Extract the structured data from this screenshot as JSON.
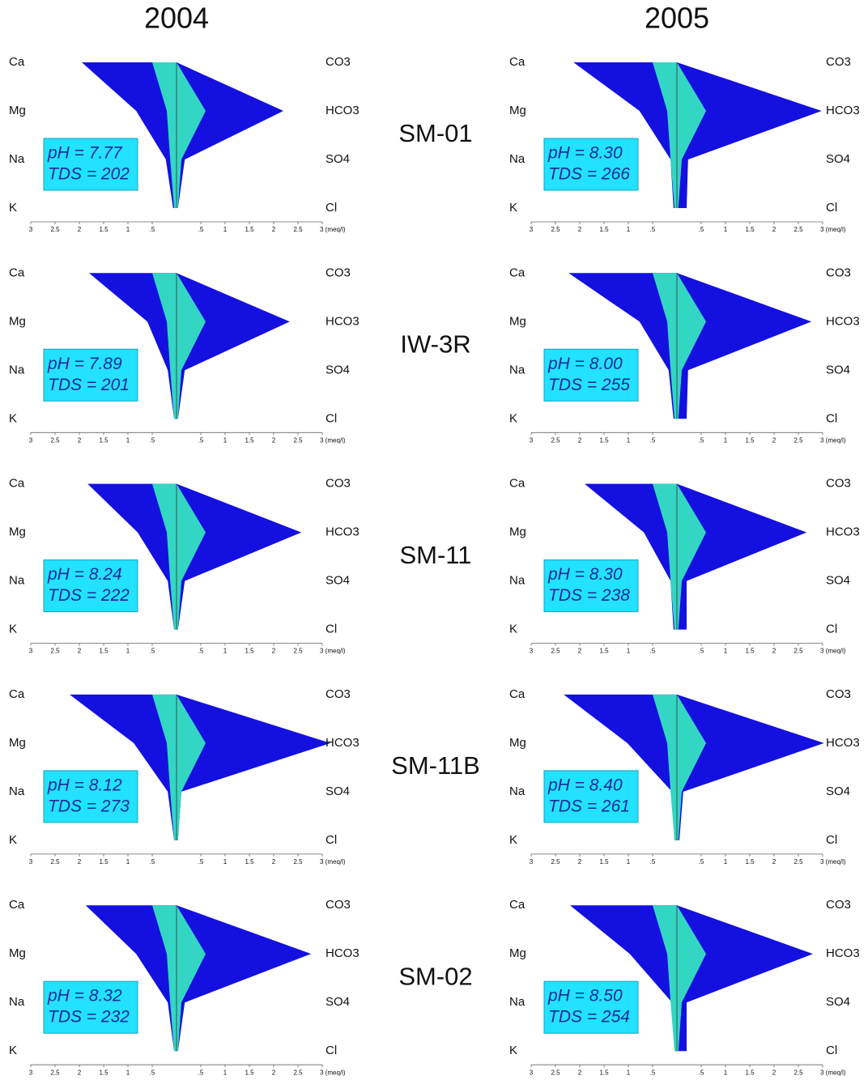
{
  "columns": [
    "2004",
    "2005"
  ],
  "sites": [
    "SM-01",
    "IW-3R",
    "SM-11",
    "SM-11B",
    "SM-02"
  ],
  "chart_data": [
    {
      "type": "stiff",
      "cation_labels": [
        "Ca",
        "Mg",
        "Na",
        "K"
      ],
      "anion_labels": [
        "CO3",
        "HCO3",
        "SO4",
        "Cl"
      ],
      "annotations": [
        "pH = 7.77",
        "TDS = 202"
      ],
      "xlim": [
        -3,
        3
      ],
      "xticks": [
        {
          "value": -3,
          "label": "3"
        },
        {
          "value": -2.5,
          "label": "2.5"
        },
        {
          "value": -2,
          "label": "2"
        },
        {
          "value": -1.5,
          "label": "1.5"
        },
        {
          "value": -1,
          "label": "1"
        },
        {
          "value": -0.5,
          "label": ".5"
        },
        {
          "value": 0.5,
          "label": ".5"
        },
        1,
        1.5,
        2,
        2.5,
        {
          "value": 3,
          "label": "3 (meq/l)"
        }
      ],
      "series": [
        {
          "color": "#1410e0",
          "cations": [
            1.95,
            0.83,
            0.22,
            0.07
          ],
          "anions": [
            0,
            2.2,
            0.17,
            0.03
          ]
        },
        {
          "color": "#33d6c2",
          "cations": [
            0.5,
            0.2,
            0.13,
            0.05
          ],
          "anions": [
            0,
            0.6,
            0.1,
            0.03
          ]
        }
      ]
    },
    {
      "type": "stiff",
      "cation_labels": [
        "Ca",
        "Mg",
        "Na",
        "K"
      ],
      "anion_labels": [
        "CO3",
        "HCO3",
        "SO4",
        "Cl"
      ],
      "annotations": [
        "pH = 8.30",
        "TDS = 266"
      ],
      "xlim": [
        -3,
        3
      ],
      "xticks": [
        {
          "value": -3,
          "label": "3"
        },
        {
          "value": -2.5,
          "label": "2.5"
        },
        {
          "value": -2,
          "label": "2"
        },
        {
          "value": -1.5,
          "label": "1.5"
        },
        {
          "value": -1,
          "label": "1"
        },
        {
          "value": -0.5,
          "label": ".5"
        },
        {
          "value": 0.5,
          "label": ".5"
        },
        1,
        1.5,
        2,
        2.5,
        {
          "value": 3,
          "label": "3 (meq/l)"
        }
      ],
      "series": [
        {
          "color": "#1410e0",
          "cations": [
            2.13,
            0.77,
            0.13,
            0.07
          ],
          "anions": [
            0,
            2.98,
            0.23,
            0.2
          ]
        },
        {
          "color": "#33d6c2",
          "cations": [
            0.5,
            0.2,
            0.13,
            0.05
          ],
          "anions": [
            0,
            0.6,
            0.1,
            0.03
          ]
        }
      ]
    },
    {
      "type": "stiff",
      "cation_labels": [
        "Ca",
        "Mg",
        "Na",
        "K"
      ],
      "anion_labels": [
        "CO3",
        "HCO3",
        "SO4",
        "Cl"
      ],
      "annotations": [
        "pH = 7.89",
        "TDS = 201"
      ],
      "xlim": [
        -3,
        3
      ],
      "xticks": [
        {
          "value": -3,
          "label": "3"
        },
        {
          "value": -2.5,
          "label": "2.5"
        },
        {
          "value": -2,
          "label": "2"
        },
        {
          "value": -1.5,
          "label": "1.5"
        },
        {
          "value": -1,
          "label": "1"
        },
        {
          "value": -0.5,
          "label": ".5"
        },
        {
          "value": 0.5,
          "label": ".5"
        },
        1,
        1.5,
        2,
        2.5,
        {
          "value": 3,
          "label": "3 (meq/l)"
        }
      ],
      "series": [
        {
          "color": "#1410e0",
          "cations": [
            1.8,
            0.6,
            0.18,
            0.05
          ],
          "anions": [
            0,
            2.33,
            0.17,
            0.03
          ]
        },
        {
          "color": "#33d6c2",
          "cations": [
            0.5,
            0.2,
            0.13,
            0.05
          ],
          "anions": [
            0,
            0.6,
            0.1,
            0.03
          ]
        }
      ]
    },
    {
      "type": "stiff",
      "cation_labels": [
        "Ca",
        "Mg",
        "Na",
        "K"
      ],
      "anion_labels": [
        "CO3",
        "HCO3",
        "SO4",
        "Cl"
      ],
      "annotations": [
        "pH = 8.00",
        "TDS = 255"
      ],
      "xlim": [
        -3,
        3
      ],
      "xticks": [
        {
          "value": -3,
          "label": "3"
        },
        {
          "value": -2.5,
          "label": "2.5"
        },
        {
          "value": -2,
          "label": "2"
        },
        {
          "value": -1.5,
          "label": "1.5"
        },
        {
          "value": -1,
          "label": "1"
        },
        {
          "value": -0.5,
          "label": ".5"
        },
        {
          "value": 0.5,
          "label": ".5"
        },
        1,
        1.5,
        2,
        2.5,
        {
          "value": 3,
          "label": "3 (meq/l)"
        }
      ],
      "series": [
        {
          "color": "#1410e0",
          "cations": [
            2.23,
            0.77,
            0.17,
            0.07
          ],
          "anions": [
            0,
            2.77,
            0.23,
            0.2
          ]
        },
        {
          "color": "#33d6c2",
          "cations": [
            0.5,
            0.2,
            0.13,
            0.05
          ],
          "anions": [
            0,
            0.6,
            0.1,
            0.03
          ]
        }
      ]
    },
    {
      "type": "stiff",
      "cation_labels": [
        "Ca",
        "Mg",
        "Na",
        "K"
      ],
      "anion_labels": [
        "CO3",
        "HCO3",
        "SO4",
        "Cl"
      ],
      "annotations": [
        "pH = 8.24",
        "TDS = 222"
      ],
      "xlim": [
        -3,
        3
      ],
      "xticks": [
        {
          "value": -3,
          "label": "3"
        },
        {
          "value": -2.5,
          "label": "2.5"
        },
        {
          "value": -2,
          "label": "2"
        },
        {
          "value": -1.5,
          "label": "1.5"
        },
        {
          "value": -1,
          "label": "1"
        },
        {
          "value": -0.5,
          "label": ".5"
        },
        {
          "value": 0.5,
          "label": ".5"
        },
        1,
        1.5,
        2,
        2.5,
        {
          "value": 3,
          "label": "3 (meq/l)"
        }
      ],
      "series": [
        {
          "color": "#1410e0",
          "cations": [
            1.83,
            0.8,
            0.18,
            0.05
          ],
          "anions": [
            0,
            2.57,
            0.17,
            0.03
          ]
        },
        {
          "color": "#33d6c2",
          "cations": [
            0.5,
            0.2,
            0.13,
            0.05
          ],
          "anions": [
            0,
            0.6,
            0.1,
            0.03
          ]
        }
      ]
    },
    {
      "type": "stiff",
      "cation_labels": [
        "Ca",
        "Mg",
        "Na",
        "K"
      ],
      "anion_labels": [
        "CO3",
        "HCO3",
        "SO4",
        "Cl"
      ],
      "annotations": [
        "pH = 8.30",
        "TDS = 238"
      ],
      "xlim": [
        -3,
        3
      ],
      "xticks": [
        {
          "value": -3,
          "label": "3"
        },
        {
          "value": -2.5,
          "label": "2.5"
        },
        {
          "value": -2,
          "label": "2"
        },
        {
          "value": -1.5,
          "label": "1.5"
        },
        {
          "value": -1,
          "label": "1"
        },
        {
          "value": -0.5,
          "label": ".5"
        },
        {
          "value": 0.5,
          "label": ".5"
        },
        1,
        1.5,
        2,
        2.5,
        {
          "value": 3,
          "label": "3 (meq/l)"
        }
      ],
      "series": [
        {
          "color": "#1410e0",
          "cations": [
            1.9,
            0.68,
            0.13,
            0.07
          ],
          "anions": [
            0,
            2.67,
            0.2,
            0.2
          ]
        },
        {
          "color": "#33d6c2",
          "cations": [
            0.5,
            0.2,
            0.13,
            0.05
          ],
          "anions": [
            0,
            0.6,
            0.1,
            0.03
          ]
        }
      ]
    },
    {
      "type": "stiff",
      "cation_labels": [
        "Ca",
        "Mg",
        "Na",
        "K"
      ],
      "anion_labels": [
        "CO3",
        "HCO3",
        "SO4",
        "Cl"
      ],
      "annotations": [
        "pH = 8.12",
        "TDS = 273"
      ],
      "xlim": [
        -3,
        3
      ],
      "xticks": [
        {
          "value": -3,
          "label": "3"
        },
        {
          "value": -2.5,
          "label": "2.5"
        },
        {
          "value": -2,
          "label": "2"
        },
        {
          "value": -1.5,
          "label": "1.5"
        },
        {
          "value": -1,
          "label": "1"
        },
        {
          "value": -0.5,
          "label": ".5"
        },
        {
          "value": 0.5,
          "label": ".5"
        },
        1,
        1.5,
        2,
        2.5,
        {
          "value": 3,
          "label": "3 (meq/l)"
        }
      ],
      "series": [
        {
          "color": "#1410e0",
          "cations": [
            2.2,
            0.88,
            0.18,
            0.05
          ],
          "anions": [
            0,
            3.17,
            0.1,
            0.03
          ]
        },
        {
          "color": "#33d6c2",
          "cations": [
            0.5,
            0.2,
            0.13,
            0.05
          ],
          "anions": [
            0,
            0.6,
            0.1,
            0.03
          ]
        }
      ]
    },
    {
      "type": "stiff",
      "cation_labels": [
        "Ca",
        "Mg",
        "Na",
        "K"
      ],
      "anion_labels": [
        "CO3",
        "HCO3",
        "SO4",
        "Cl"
      ],
      "annotations": [
        "pH = 8.40",
        "TDS = 261"
      ],
      "xlim": [
        -3,
        3
      ],
      "xticks": [
        {
          "value": -3,
          "label": "3"
        },
        {
          "value": -2.5,
          "label": "2.5"
        },
        {
          "value": -2,
          "label": "2"
        },
        {
          "value": -1.5,
          "label": "1.5"
        },
        {
          "value": -1,
          "label": "1"
        },
        {
          "value": -0.5,
          "label": ".5"
        },
        {
          "value": 0.5,
          "label": ".5"
        },
        1,
        1.5,
        2,
        2.5,
        {
          "value": 3,
          "label": "3 (meq/l)"
        }
      ],
      "series": [
        {
          "color": "#1410e0",
          "cations": [
            2.33,
            1.02,
            0.1,
            0.05
          ],
          "anions": [
            0,
            3.03,
            0.13,
            0.05
          ]
        },
        {
          "color": "#33d6c2",
          "cations": [
            0.5,
            0.2,
            0.13,
            0.05
          ],
          "anions": [
            0,
            0.6,
            0.1,
            0.03
          ]
        }
      ]
    },
    {
      "type": "stiff",
      "cation_labels": [
        "Ca",
        "Mg",
        "Na",
        "K"
      ],
      "anion_labels": [
        "CO3",
        "HCO3",
        "SO4",
        "Cl"
      ],
      "annotations": [
        "pH = 8.32",
        "TDS = 232"
      ],
      "xlim": [
        -3,
        3
      ],
      "xticks": [
        {
          "value": -3,
          "label": "3"
        },
        {
          "value": -2.5,
          "label": "2.5"
        },
        {
          "value": -2,
          "label": "2"
        },
        {
          "value": -1.5,
          "label": "1.5"
        },
        {
          "value": -1,
          "label": "1"
        },
        {
          "value": -0.5,
          "label": ".5"
        },
        {
          "value": 0.5,
          "label": ".5"
        },
        1,
        1.5,
        2,
        2.5,
        {
          "value": 3,
          "label": "3 (meq/l)"
        }
      ],
      "series": [
        {
          "color": "#1410e0",
          "cations": [
            1.87,
            0.83,
            0.18,
            0.05
          ],
          "anions": [
            0,
            2.77,
            0.17,
            0.03
          ]
        },
        {
          "color": "#33d6c2",
          "cations": [
            0.5,
            0.2,
            0.13,
            0.05
          ],
          "anions": [
            0,
            0.6,
            0.1,
            0.03
          ]
        }
      ]
    },
    {
      "type": "stiff",
      "cation_labels": [
        "Ca",
        "Mg",
        "Na",
        "K"
      ],
      "anion_labels": [
        "CO3",
        "HCO3",
        "SO4",
        "Cl"
      ],
      "annotations": [
        "pH = 8.50",
        "TDS = 254"
      ],
      "xlim": [
        -3,
        3
      ],
      "xticks": [
        {
          "value": -3,
          "label": "3"
        },
        {
          "value": -2.5,
          "label": "2.5"
        },
        {
          "value": -2,
          "label": "2"
        },
        {
          "value": -1.5,
          "label": "1.5"
        },
        {
          "value": -1,
          "label": "1"
        },
        {
          "value": -0.5,
          "label": ".5"
        },
        {
          "value": 0.5,
          "label": ".5"
        },
        1,
        1.5,
        2,
        2.5,
        {
          "value": 3,
          "label": "3 (meq/l)"
        }
      ],
      "series": [
        {
          "color": "#1410e0",
          "cations": [
            2.2,
            0.97,
            0.1,
            0.05
          ],
          "anions": [
            0,
            2.8,
            0.2,
            0.2
          ]
        },
        {
          "color": "#33d6c2",
          "cations": [
            0.5,
            0.2,
            0.13,
            0.05
          ],
          "anions": [
            0,
            0.6,
            0.1,
            0.03
          ]
        }
      ]
    }
  ]
}
